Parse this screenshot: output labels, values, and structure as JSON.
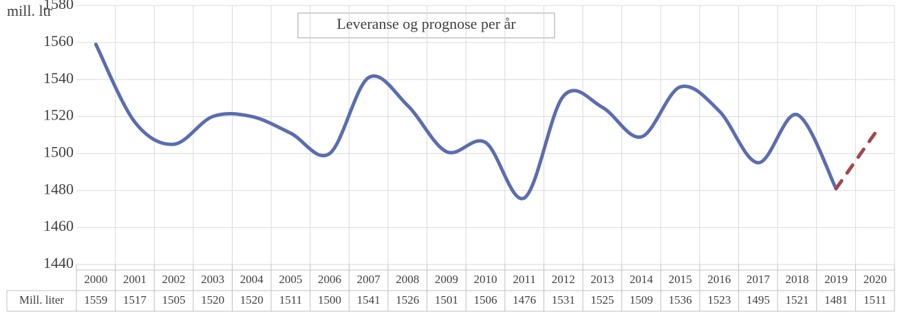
{
  "chart_data": {
    "type": "line",
    "title": "Leveranse og prognose per år",
    "y_label": "mill. ltr",
    "categories": [
      "2000",
      "2001",
      "2002",
      "2003",
      "2004",
      "2005",
      "2006",
      "2007",
      "2008",
      "2009",
      "2010",
      "2011",
      "2012",
      "2013",
      "2014",
      "2015",
      "2016",
      "2017",
      "2018",
      "2019",
      "2020"
    ],
    "series": [
      {
        "name": "Mill. liter",
        "color": "#5b6db0",
        "dash_color": "#a0474b",
        "dashed_last_segments": 1,
        "values": [
          1559,
          1517,
          1505,
          1520,
          1520,
          1511,
          1500,
          1541,
          1526,
          1501,
          1506,
          1476,
          1531,
          1525,
          1509,
          1536,
          1523,
          1495,
          1521,
          1481,
          1511
        ]
      }
    ],
    "ylim": [
      1440,
      1580
    ],
    "yticks": [
      1440,
      1460,
      1480,
      1500,
      1520,
      1540,
      1560,
      1580
    ],
    "grid": true,
    "data_table": true
  }
}
